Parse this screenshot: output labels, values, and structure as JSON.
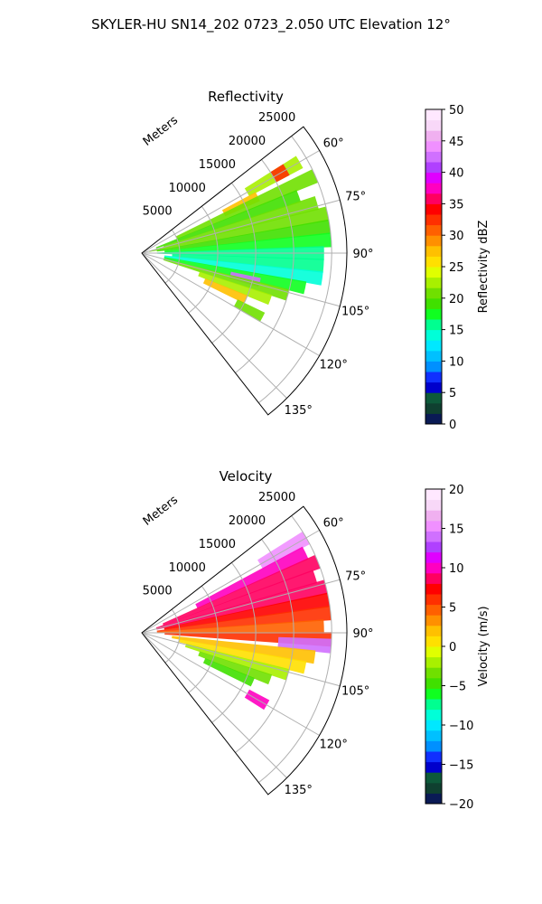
{
  "figure": {
    "suptitle": "SKYLER-HU  SN14_202  0723_2.050 UTC Elevation 12°"
  },
  "chart_data": [
    {
      "type": "heatmap",
      "subtype": "polar-ppi-sector",
      "title": "Reflectivity",
      "radial_label": "Meters",
      "radial_ticks": [
        "5000",
        "10000",
        "15000",
        "20000",
        "25000"
      ],
      "radial_values": [
        5000,
        10000,
        15000,
        20000,
        25000
      ],
      "rlim": [
        0,
        27000
      ],
      "azimuth_range_deg": [
        52,
        142
      ],
      "azimuth_ticks": [
        "60°",
        "75°",
        "90°",
        "105°",
        "120°",
        "135°"
      ],
      "azimuth_values": [
        60,
        75,
        90,
        105,
        120,
        135
      ],
      "grid": true,
      "colorbar": {
        "label": "Reflectivity dBZ",
        "range": [
          0,
          50
        ],
        "ticks": [
          "0",
          "5",
          "10",
          "15",
          "20",
          "25",
          "30",
          "35",
          "40",
          "45",
          "50"
        ],
        "tick_values": [
          0,
          5,
          10,
          15,
          20,
          25,
          30,
          35,
          40,
          45,
          50
        ],
        "colors": [
          "#0a1a55",
          "#0f4030",
          "#0d5a3a",
          "#0000cc",
          "#1030ff",
          "#0090ff",
          "#00c0ff",
          "#00e8ff",
          "#00ffd8",
          "#00ff90",
          "#10ff20",
          "#40e000",
          "#70e000",
          "#a8f000",
          "#e0ff00",
          "#ffe000",
          "#ffc000",
          "#ff9000",
          "#ff6000",
          "#ff3000",
          "#ff0000",
          "#ff0060",
          "#ff00c0",
          "#e000ff",
          "#b040ff",
          "#d070ff",
          "#f090ff",
          "#f0b0f0",
          "#f8d8f8",
          "#ffe8ff"
        ]
      },
      "cells": [
        {
          "az": 60,
          "r0": 16000,
          "r1": 24000,
          "value": 23
        },
        {
          "az": 60,
          "r0": 20000,
          "r1": 22000,
          "value": 33
        },
        {
          "az": 64,
          "r0": 12000,
          "r1": 17000,
          "value": 28
        },
        {
          "az": 66,
          "r0": 5000,
          "r1": 25000,
          "value": 21
        },
        {
          "az": 70,
          "r0": 2000,
          "r1": 22000,
          "value": 19
        },
        {
          "az": 74,
          "r0": 3000,
          "r1": 24000,
          "value": 20
        },
        {
          "az": 78,
          "r0": 1000,
          "r1": 25000,
          "value": 21
        },
        {
          "az": 82,
          "r0": 2000,
          "r1": 25000,
          "value": 19
        },
        {
          "az": 86,
          "r0": 3000,
          "r1": 25000,
          "value": 18
        },
        {
          "az": 90,
          "r0": 2000,
          "r1": 24000,
          "value": 16
        },
        {
          "az": 94,
          "r0": 4000,
          "r1": 24000,
          "value": 15
        },
        {
          "az": 98,
          "r0": 3000,
          "r1": 24000,
          "value": 14
        },
        {
          "az": 102,
          "r0": 3000,
          "r1": 22000,
          "value": 18
        },
        {
          "az": 104,
          "r0": 12000,
          "r1": 16000,
          "value": 42
        },
        {
          "az": 106,
          "r0": 3000,
          "r1": 20000,
          "value": 20
        },
        {
          "az": 110,
          "r0": 8000,
          "r1": 18000,
          "value": 22
        },
        {
          "az": 114,
          "r0": 9000,
          "r1": 15000,
          "value": 27
        },
        {
          "az": 118,
          "r0": 14000,
          "r1": 18000,
          "value": 20
        }
      ]
    },
    {
      "type": "heatmap",
      "subtype": "polar-ppi-sector",
      "title": "Velocity",
      "radial_label": "Meters",
      "radial_ticks": [
        "5000",
        "10000",
        "15000",
        "20000",
        "25000"
      ],
      "radial_values": [
        5000,
        10000,
        15000,
        20000,
        25000
      ],
      "rlim": [
        0,
        27000
      ],
      "azimuth_range_deg": [
        52,
        142
      ],
      "azimuth_ticks": [
        "60°",
        "75°",
        "90°",
        "105°",
        "120°",
        "135°"
      ],
      "azimuth_values": [
        60,
        75,
        90,
        105,
        120,
        135
      ],
      "grid": true,
      "colorbar": {
        "label": "Velocity (m/s)",
        "range": [
          -20,
          20
        ],
        "ticks": [
          "−20",
          "−15",
          "−10",
          "−5",
          "0",
          "5",
          "10",
          "15",
          "20"
        ],
        "tick_values": [
          -20,
          -15,
          -10,
          -5,
          0,
          5,
          10,
          15,
          20
        ],
        "colors": [
          "#0a1a55",
          "#0f4030",
          "#0d5a3a",
          "#0000cc",
          "#1030ff",
          "#0090ff",
          "#00c0ff",
          "#00e8ff",
          "#00ffd8",
          "#00ff90",
          "#10ff20",
          "#40e000",
          "#70e000",
          "#a8f000",
          "#e0ff00",
          "#ffe000",
          "#ffc000",
          "#ff9000",
          "#ff6000",
          "#ff3000",
          "#ff0000",
          "#ff0060",
          "#ff00c0",
          "#e000ff",
          "#b040ff",
          "#d070ff",
          "#f090ff",
          "#f0b0f0",
          "#f8d8f8",
          "#ffe8ff"
        ]
      },
      "cells": [
        {
          "az": 60,
          "r0": 18000,
          "r1": 25000,
          "value": 15
        },
        {
          "az": 64,
          "r0": 8000,
          "r1": 24000,
          "value": 10
        },
        {
          "az": 68,
          "r0": 3000,
          "r1": 25000,
          "value": 9
        },
        {
          "az": 72,
          "r0": 2000,
          "r1": 24000,
          "value": 8
        },
        {
          "az": 76,
          "r0": 2000,
          "r1": 25000,
          "value": 8
        },
        {
          "az": 80,
          "r0": 3000,
          "r1": 25000,
          "value": 7
        },
        {
          "az": 84,
          "r0": 2000,
          "r1": 25000,
          "value": 6
        },
        {
          "az": 88,
          "r0": 2000,
          "r1": 24000,
          "value": 5
        },
        {
          "az": 92,
          "r0": 3000,
          "r1": 25000,
          "value": 6
        },
        {
          "az": 94,
          "r0": 18000,
          "r1": 25000,
          "value": 14
        },
        {
          "az": 98,
          "r0": 4000,
          "r1": 23000,
          "value": 2
        },
        {
          "az": 102,
          "r0": 5000,
          "r1": 22000,
          "value": 1
        },
        {
          "az": 106,
          "r0": 6000,
          "r1": 20000,
          "value": -2
        },
        {
          "az": 110,
          "r0": 8000,
          "r1": 18000,
          "value": -4
        },
        {
          "az": 114,
          "r0": 9000,
          "r1": 16000,
          "value": -5
        },
        {
          "az": 120,
          "r0": 16000,
          "r1": 19000,
          "value": 10
        }
      ]
    }
  ]
}
